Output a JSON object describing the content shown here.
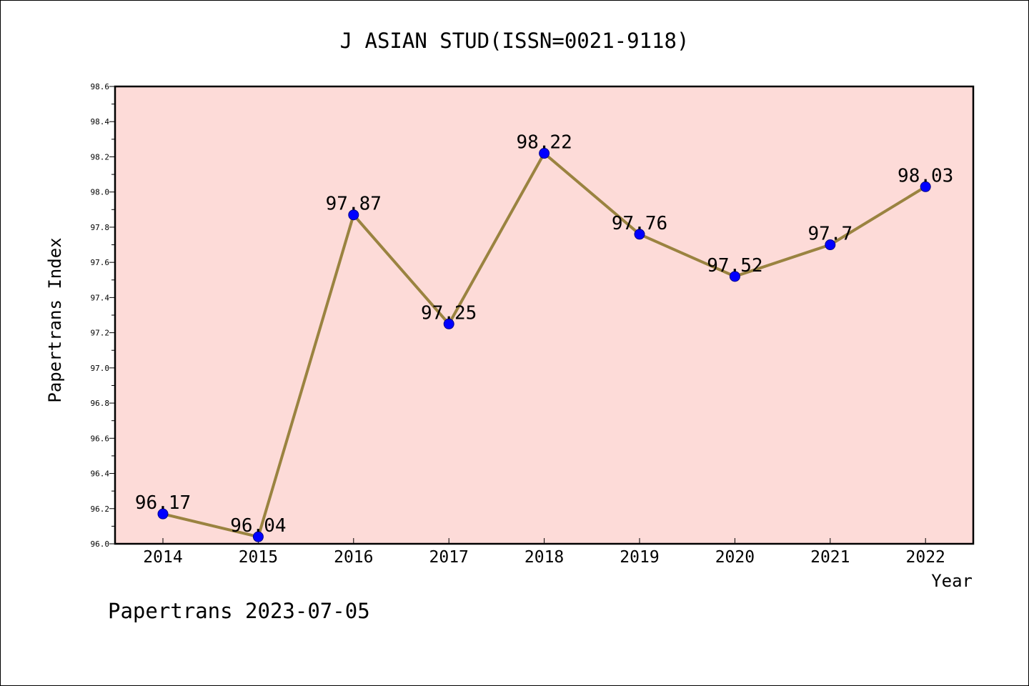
{
  "chart_data": {
    "type": "line",
    "title": "J ASIAN STUD(ISSN=0021-9118)",
    "xlabel": "Year",
    "ylabel": "Papertrans Index",
    "x": [
      "2014",
      "2015",
      "2016",
      "2017",
      "2018",
      "2019",
      "2020",
      "2021",
      "2022"
    ],
    "series": [
      {
        "values": [
          96.17,
          96.04,
          97.87,
          97.25,
          98.22,
          97.76,
          97.52,
          97.7,
          98.03
        ],
        "labels": [
          "96.17",
          "96.04",
          "97.87",
          "97.25",
          "98.22",
          "97.76",
          "97.52",
          "97.7",
          "98.03"
        ]
      }
    ],
    "ylim": [
      96.0,
      98.6
    ],
    "yticks": [
      "96.0",
      "96.2",
      "96.4",
      "96.6",
      "96.8",
      "97.0",
      "97.2",
      "97.4",
      "97.6",
      "97.8",
      "98.0",
      "98.2",
      "98.4",
      "98.6"
    ],
    "grid": false,
    "colors": {
      "plot_background": "#fddbd8",
      "line": "#9a8340",
      "marker": "#0000ff",
      "axis": "#000000"
    }
  },
  "footer": {
    "text": "Papertrans 2023-07-05"
  }
}
